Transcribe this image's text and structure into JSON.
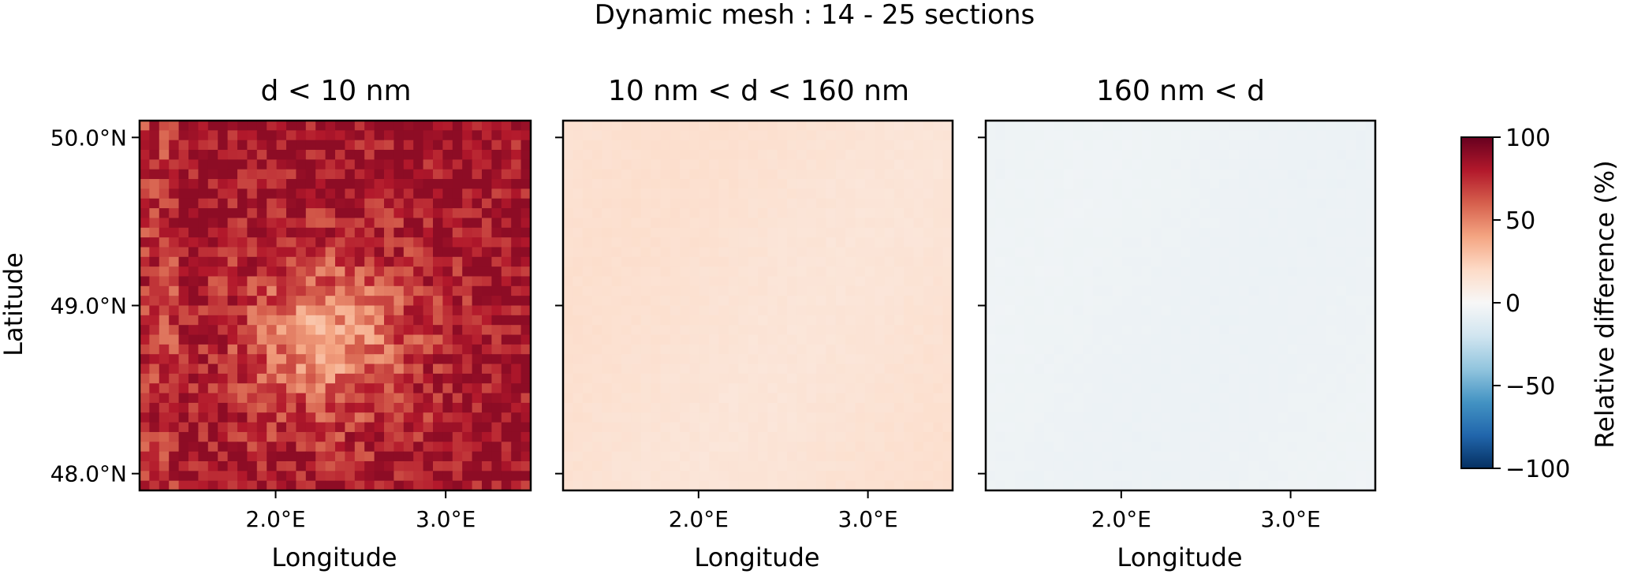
{
  "suptitle": "Dynamic mesh : 14 - 25 sections",
  "colorbar": {
    "label": "Relative difference (%)",
    "ticks": [
      "100",
      "50",
      "0",
      "−50",
      "−100"
    ],
    "tick_values": [
      100,
      50,
      0,
      -50,
      -100
    ],
    "range": [
      -100,
      100
    ],
    "colormap": "RdBu_r",
    "colors": [
      "#67001f",
      "#b2182b",
      "#d6604d",
      "#f4a582",
      "#fddbc7",
      "#f7f7f7",
      "#d1e5f0",
      "#92c5de",
      "#4393c3",
      "#2166ac",
      "#053061"
    ]
  },
  "y_axis": {
    "label": "Latitude",
    "ticks": [
      "50.0°N",
      "49.0°N",
      "48.0°N"
    ],
    "tick_values": [
      50.0,
      49.0,
      48.0
    ]
  },
  "x_axis": {
    "label": "Longitude",
    "ticks": [
      "2.0°E",
      "3.0°E"
    ],
    "tick_values": [
      2.0,
      3.0
    ]
  },
  "chart_data": [
    {
      "type": "heatmap",
      "title": "d < 10 nm",
      "xlabel": "Longitude",
      "ylabel": "Latitude",
      "xlim": [
        1.2,
        3.5
      ],
      "ylim": [
        47.9,
        50.1
      ],
      "value_range": [
        -100,
        100
      ],
      "typical_value": 60,
      "min_value": 20,
      "max_value": 90
    },
    {
      "type": "heatmap",
      "title": "10 nm < d < 160 nm",
      "xlabel": "Longitude",
      "ylabel": "",
      "xlim": [
        1.2,
        3.5
      ],
      "ylim": [
        47.9,
        50.1
      ],
      "value_range": [
        -100,
        100
      ],
      "typical_value": 15,
      "min_value": 5,
      "max_value": 20
    },
    {
      "type": "heatmap",
      "title": "160 nm < d",
      "xlabel": "Longitude",
      "ylabel": "",
      "xlim": [
        1.2,
        3.5
      ],
      "ylim": [
        47.9,
        50.1
      ],
      "value_range": [
        -100,
        100
      ],
      "typical_value": -5,
      "min_value": -8,
      "max_value": -2
    }
  ]
}
